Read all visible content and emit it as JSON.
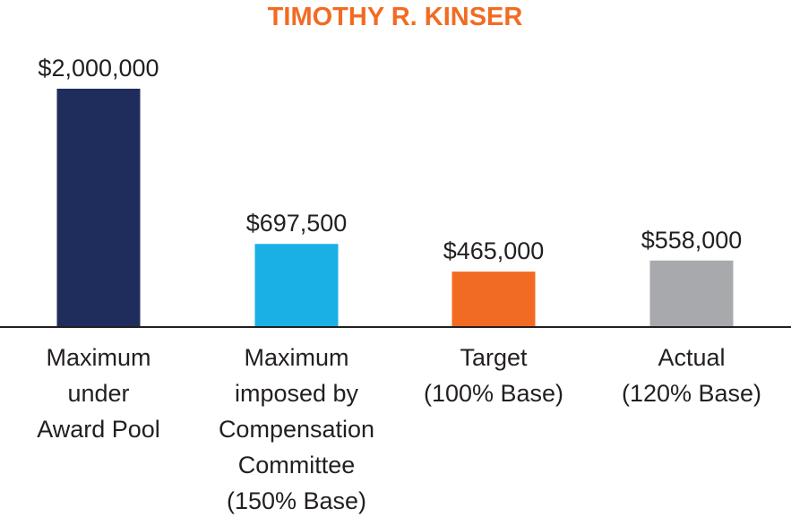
{
  "chart_data": {
    "type": "bar",
    "title": "TIMOTHY R. KINSER",
    "xlabel": "",
    "ylabel": "",
    "ylim": [
      0,
      2000000
    ],
    "grid": false,
    "legend": "none",
    "categories": [
      [
        "Maximum",
        "under",
        "Award Pool"
      ],
      [
        "Maximum",
        "imposed by",
        "Compensation",
        "Committee",
        "(150% Base)"
      ],
      [
        "Target",
        "(100% Base)"
      ],
      [
        "Actual",
        "(120% Base)"
      ]
    ],
    "values": [
      2000000,
      697500,
      465000,
      558000
    ],
    "value_labels": [
      "$2,000,000",
      "$697,500",
      "$465,000",
      "$558,000"
    ],
    "colors": [
      "#1f2d5c",
      "#1ab0e6",
      "#f26b23",
      "#a7a9ac"
    ],
    "title_color": "#f26b23",
    "axis_color": "#231f20"
  }
}
